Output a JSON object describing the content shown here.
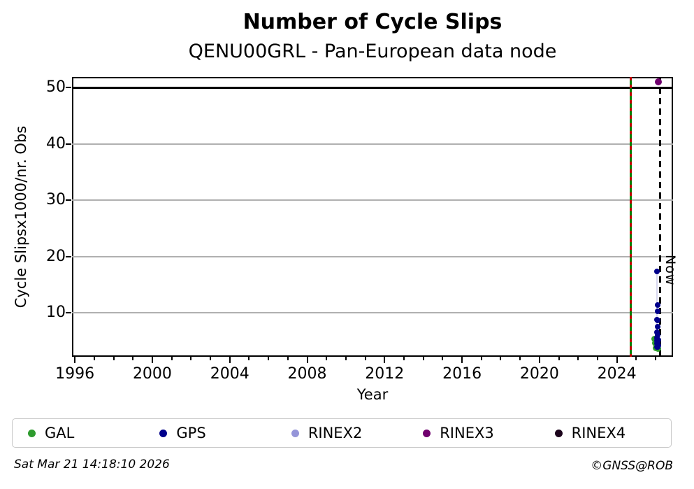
{
  "page": {
    "title": "Number of Cycle Slips",
    "subtitle": "QENU00GRL - Pan-European data node"
  },
  "footer": {
    "timestamp": "Sat Mar 21 14:18:10 2026",
    "credit": "©GNSS@ROB"
  },
  "legend": {
    "items": [
      {
        "label": "GAL",
        "color": "#2e9b2e"
      },
      {
        "label": "GPS",
        "color": "#00008b"
      },
      {
        "label": "RINEX2",
        "color": "#9595d9"
      },
      {
        "label": "RINEX3",
        "color": "#70006e"
      },
      {
        "label": "RINEX4",
        "color": "#1c041c"
      }
    ]
  },
  "chart_data": {
    "type": "scatter",
    "title": "Number of Cycle Slips",
    "subtitle": "QENU00GRL - Pan-European data node",
    "xlabel": "Year",
    "ylabel": "Cycle Slipsx1000/nr. Obs",
    "xlim": [
      1995.85,
      2026.9
    ],
    "ylim": [
      2.2,
      51.9
    ],
    "xticks_major": [
      1996,
      2000,
      2004,
      2008,
      2012,
      2016,
      2020,
      2024
    ],
    "xtick_minor_step": 1,
    "yticks": [
      10,
      20,
      30,
      40,
      50
    ],
    "grid": "horizontal",
    "grid_color": "#b0b0b0",
    "threshold_line": {
      "value": 50,
      "color": "#000000"
    },
    "event_line": {
      "year": 2024.72,
      "style": "green-red-dashed",
      "green": "#007f00",
      "red": "#c00000"
    },
    "now_line": {
      "year": 2026.22,
      "label": "Now",
      "color": "#000000",
      "style": "dashed"
    },
    "legend_position": "bottom",
    "series": [
      {
        "name": "GAL",
        "color": "#2e9b2e",
        "points": [
          [
            2025.93,
            5.4
          ],
          [
            2025.98,
            4.6
          ],
          [
            2026.0,
            3.8
          ],
          [
            2026.14,
            3.6
          ]
        ]
      },
      {
        "name": "GPS",
        "color": "#00008b",
        "connector_color": "#d8d8ef",
        "points": [
          [
            2026.07,
            17.3
          ],
          [
            2026.11,
            11.4
          ],
          [
            2026.11,
            10.3
          ],
          [
            2026.07,
            8.8
          ],
          [
            2026.12,
            8.6
          ],
          [
            2026.11,
            7.6
          ],
          [
            2026.07,
            6.6
          ],
          [
            2026.11,
            6.0
          ],
          [
            2026.07,
            5.6
          ],
          [
            2026.14,
            5.2
          ],
          [
            2026.07,
            5.0
          ],
          [
            2026.11,
            4.7
          ],
          [
            2026.07,
            4.5
          ],
          [
            2026.14,
            4.2
          ],
          [
            2026.11,
            4.0
          ],
          [
            2026.07,
            3.9
          ]
        ]
      },
      {
        "name": "RINEX2",
        "color": "#9595d9",
        "points": []
      },
      {
        "name": "RINEX3",
        "color": "#70006e",
        "points": [
          [
            2026.14,
            51.0
          ]
        ]
      },
      {
        "name": "RINEX4",
        "color": "#1c041c",
        "points": []
      }
    ]
  }
}
